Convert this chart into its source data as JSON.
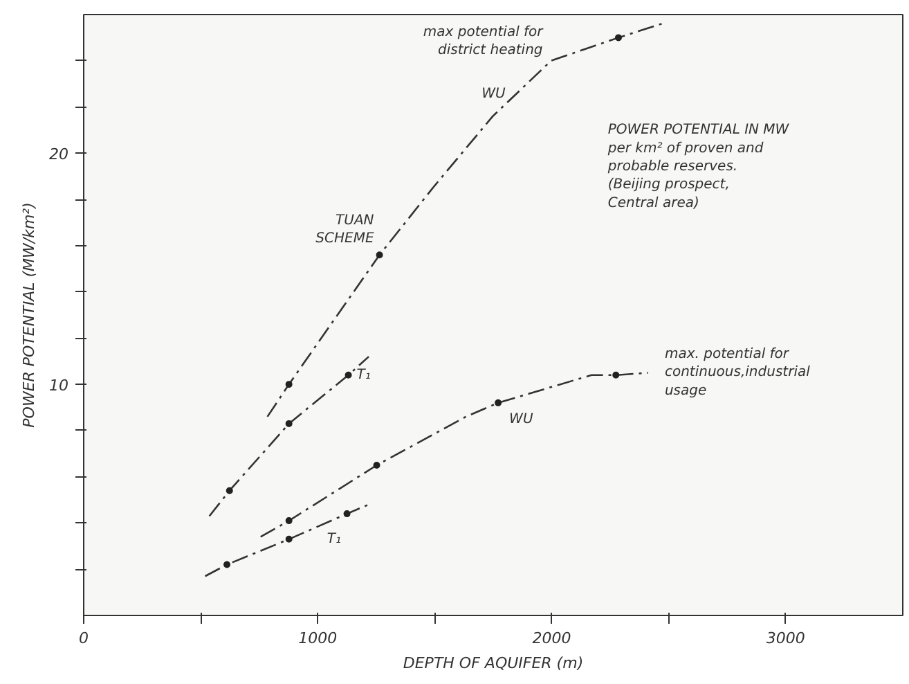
{
  "chart_data": {
    "type": "line",
    "xlabel": "DEPTH OF AQUIFER (m)",
    "ylabel": "POWER POTENTIAL (MW/km²)",
    "xlim": [
      0,
      3500
    ],
    "ylim": [
      0,
      26
    ],
    "xticks": [
      0,
      {
        "value": 500,
        "label": null
      },
      1000,
      {
        "value": 1500,
        "label": null
      },
      2000,
      {
        "value": 2500,
        "label": null
      },
      3000
    ],
    "yticks": [
      {
        "value": 2,
        "label": null
      },
      {
        "value": 4,
        "label": null
      },
      {
        "value": 6,
        "label": null
      },
      {
        "value": 8,
        "label": null
      },
      10,
      {
        "value": 12,
        "label": null
      },
      {
        "value": 14,
        "label": null
      },
      {
        "value": 16,
        "label": null
      },
      {
        "value": 18,
        "label": null
      },
      20,
      {
        "value": 22,
        "label": null
      },
      {
        "value": 24,
        "label": null
      }
    ],
    "grid": false,
    "line_style": "dashed",
    "series": [
      {
        "color": "#333333",
        "x": [
          785,
          877,
          1264,
          1500,
          1748,
          1997,
          2285,
          2470
        ],
        "values": [
          8.6,
          10.0,
          15.6,
          18.6,
          21.6,
          24.0,
          25.0,
          25.6
        ]
      },
      {
        "color": "#333333",
        "x": [
          537,
          623,
          877,
          1131,
          1218
        ],
        "values": [
          4.3,
          5.4,
          8.3,
          10.4,
          11.2
        ]
      },
      {
        "color": "#333333",
        "x": [
          756,
          877,
          1252,
          1633,
          1771,
          2170,
          2274,
          2412
        ],
        "values": [
          3.4,
          4.1,
          6.5,
          8.6,
          9.2,
          10.4,
          10.4,
          10.5
        ]
      },
      {
        "color": "#333333",
        "x": [
          519,
          612,
          877,
          1125,
          1218
        ],
        "values": [
          1.7,
          2.2,
          3.3,
          4.4,
          4.8
        ]
      },
      {
        "type": "scatter",
        "color": "#222222",
        "marker": "circle",
        "x": [
          877,
          1264,
          2285
        ],
        "values": [
          10.0,
          15.6,
          25.0
        ]
      },
      {
        "type": "scatter",
        "color": "#222222",
        "marker": "circle",
        "x": [
          623,
          877,
          1131
        ],
        "values": [
          5.4,
          8.3,
          10.4
        ]
      },
      {
        "type": "scatter",
        "color": "#222222",
        "marker": "circle",
        "x": [
          877,
          1252,
          1771,
          2274
        ],
        "values": [
          4.1,
          6.5,
          9.2,
          10.4
        ]
      },
      {
        "type": "scatter",
        "color": "#222222",
        "marker": "circle",
        "x": [
          612,
          877,
          1125
        ],
        "values": [
          2.2,
          3.3,
          4.4
        ]
      }
    ],
    "annotations": [
      {
        "text": "max potential for\ndistrict heating",
        "x": 1997,
        "y": 24.0
      },
      {
        "text": "WU",
        "x": 1748,
        "y": 21.6
      },
      {
        "text": "TUAN\nSCHEME",
        "x": 1264,
        "y": 15.6
      },
      {
        "text": "T₁",
        "x": 1131,
        "y": 10.4
      },
      {
        "text": "WU",
        "x": 1771,
        "y": 9.2
      },
      {
        "text": "T₁",
        "x": 1040,
        "y": 3.9
      },
      {
        "text": "max. potential for\ncontinuous,industrial\nusage",
        "x": 2412,
        "y": 10.5
      },
      "POWER POTENTIAL IN MW\nper km² of proven and\nprobable reserves.\n(Beijing prospect,\nCentral area)"
    ]
  }
}
